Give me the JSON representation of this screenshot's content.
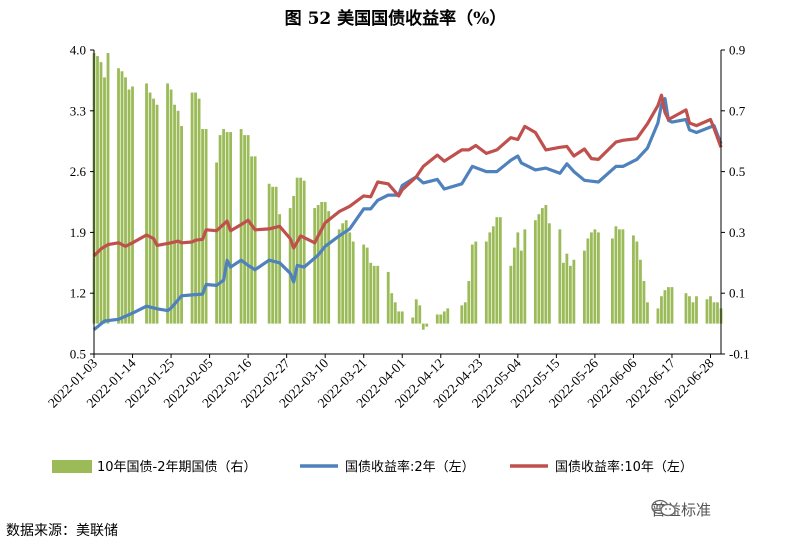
{
  "title": "图 52  美国国债收益率（%）",
  "source": "数据来源：美联储",
  "brand": {
    "name": "普益标准",
    "icon": "wechat-icon"
  },
  "colors": {
    "bar": "#9BBB59",
    "line2y": "#4F81BD",
    "line10y": "#C0504D"
  },
  "chart_data": {
    "type": "bar+line",
    "title": "",
    "left_axis": {
      "min": 0.5,
      "max": 4.0,
      "ticks": [
        "0.5",
        "1.2",
        "1.9",
        "2.6",
        "3.3",
        "4.0"
      ],
      "tick_values": [
        0.5,
        1.2,
        1.9,
        2.6,
        3.3,
        4.0
      ]
    },
    "right_axis": {
      "min": -0.1,
      "max": 0.9,
      "ticks": [
        "-0.1",
        "0.1",
        "0.3",
        "0.5",
        "0.7",
        "0.9"
      ],
      "tick_values": [
        -0.1,
        0.1,
        0.3,
        0.5,
        0.7,
        0.9
      ]
    },
    "x_tick_labels": [
      "2022-01-03",
      "2022-01-14",
      "2022-01-25",
      "2022-02-05",
      "2022-02-16",
      "2022-02-27",
      "2022-03-10",
      "2022-03-21",
      "2022-04-01",
      "2022-04-12",
      "2022-04-23",
      "2022-05-04",
      "2022-05-15",
      "2022-05-26",
      "2022-06-06",
      "2022-06-17",
      "2022-06-28"
    ],
    "x_range": [
      "2022-01-03",
      "2022-07-01"
    ],
    "legend_position": "bottom",
    "series": [
      {
        "name": "10年国债-2年期国债（右）",
        "type": "bar",
        "axis": "right",
        "points": [
          [
            "2022-01-03",
            0.89
          ],
          [
            "2022-01-04",
            0.88
          ],
          [
            "2022-01-05",
            0.86
          ],
          [
            "2022-01-06",
            0.81
          ],
          [
            "2022-01-07",
            0.89
          ],
          [
            "2022-01-10",
            0.84
          ],
          [
            "2022-01-11",
            0.83
          ],
          [
            "2022-01-12",
            0.81
          ],
          [
            "2022-01-13",
            0.77
          ],
          [
            "2022-01-14",
            0.78
          ],
          [
            "2022-01-18",
            0.79
          ],
          [
            "2022-01-19",
            0.76
          ],
          [
            "2022-01-20",
            0.74
          ],
          [
            "2022-01-21",
            0.72
          ],
          [
            "2022-01-24",
            0.79
          ],
          [
            "2022-01-25",
            0.77
          ],
          [
            "2022-01-26",
            0.72
          ],
          [
            "2022-01-27",
            0.7
          ],
          [
            "2022-01-28",
            0.65
          ],
          [
            "2022-01-31",
            0.76
          ],
          [
            "2022-02-01",
            0.76
          ],
          [
            "2022-02-02",
            0.74
          ],
          [
            "2022-02-03",
            0.64
          ],
          [
            "2022-02-04",
            0.64
          ],
          [
            "2022-02-07",
            0.53
          ],
          [
            "2022-02-08",
            0.62
          ],
          [
            "2022-02-09",
            0.64
          ],
          [
            "2022-02-10",
            0.63
          ],
          [
            "2022-02-11",
            0.63
          ],
          [
            "2022-02-14",
            0.64
          ],
          [
            "2022-02-15",
            0.62
          ],
          [
            "2022-02-16",
            0.62
          ],
          [
            "2022-02-17",
            0.55
          ],
          [
            "2022-02-18",
            0.55
          ],
          [
            "2022-02-22",
            0.46
          ],
          [
            "2022-02-23",
            0.45
          ],
          [
            "2022-02-24",
            0.45
          ],
          [
            "2022-02-25",
            0.36
          ],
          [
            "2022-02-28",
            0.38
          ],
          [
            "2022-03-01",
            0.42
          ],
          [
            "2022-03-02",
            0.48
          ],
          [
            "2022-03-03",
            0.48
          ],
          [
            "2022-03-04",
            0.47
          ],
          [
            "2022-03-07",
            0.38
          ],
          [
            "2022-03-08",
            0.39
          ],
          [
            "2022-03-09",
            0.4
          ],
          [
            "2022-03-10",
            0.4
          ],
          [
            "2022-03-11",
            0.37
          ],
          [
            "2022-03-14",
            0.31
          ],
          [
            "2022-03-15",
            0.33
          ],
          [
            "2022-03-16",
            0.34
          ],
          [
            "2022-03-17",
            0.3
          ],
          [
            "2022-03-18",
            0.27
          ],
          [
            "2022-03-21",
            0.26
          ],
          [
            "2022-03-22",
            0.25
          ],
          [
            "2022-03-23",
            0.2
          ],
          [
            "2022-03-24",
            0.19
          ],
          [
            "2022-03-25",
            0.19
          ],
          [
            "2022-03-28",
            0.17
          ],
          [
            "2022-03-29",
            0.1
          ],
          [
            "2022-03-30",
            0.07
          ],
          [
            "2022-03-31",
            0.04
          ],
          [
            "2022-04-01",
            0.04
          ],
          [
            "2022-04-04",
            0.02
          ],
          [
            "2022-04-05",
            0.08
          ],
          [
            "2022-04-06",
            0.06
          ],
          [
            "2022-04-07",
            -0.02
          ],
          [
            "2022-04-08",
            -0.01
          ],
          [
            "2022-04-11",
            0.03
          ],
          [
            "2022-04-12",
            0.03
          ],
          [
            "2022-04-13",
            0.04
          ],
          [
            "2022-04-14",
            0.05
          ],
          [
            "2022-04-18",
            0.06
          ],
          [
            "2022-04-19",
            0.07
          ],
          [
            "2022-04-20",
            0.14
          ],
          [
            "2022-04-21",
            0.26
          ],
          [
            "2022-04-22",
            0.27
          ],
          [
            "2022-04-25",
            0.27
          ],
          [
            "2022-04-26",
            0.3
          ],
          [
            "2022-04-27",
            0.32
          ],
          [
            "2022-04-28",
            0.35
          ],
          [
            "2022-04-29",
            0.35
          ],
          [
            "2022-05-02",
            0.19
          ],
          [
            "2022-05-03",
            0.25
          ],
          [
            "2022-05-04",
            0.3
          ],
          [
            "2022-05-05",
            0.24
          ],
          [
            "2022-05-06",
            0.31
          ],
          [
            "2022-05-09",
            0.34
          ],
          [
            "2022-05-10",
            0.36
          ],
          [
            "2022-05-11",
            0.38
          ],
          [
            "2022-05-12",
            0.39
          ],
          [
            "2022-05-13",
            0.33
          ],
          [
            "2022-05-16",
            0.31
          ],
          [
            "2022-05-17",
            0.2
          ],
          [
            "2022-05-18",
            0.23
          ],
          [
            "2022-05-19",
            0.19
          ],
          [
            "2022-05-20",
            0.21
          ],
          [
            "2022-05-23",
            0.24
          ],
          [
            "2022-05-24",
            0.28
          ],
          [
            "2022-05-25",
            0.3
          ],
          [
            "2022-05-26",
            0.31
          ],
          [
            "2022-05-27",
            0.3
          ],
          [
            "2022-05-31",
            0.28
          ],
          [
            "2022-06-01",
            0.32
          ],
          [
            "2022-06-02",
            0.31
          ],
          [
            "2022-06-03",
            0.31
          ],
          [
            "2022-06-06",
            0.29
          ],
          [
            "2022-06-07",
            0.27
          ],
          [
            "2022-06-08",
            0.21
          ],
          [
            "2022-06-09",
            0.14
          ],
          [
            "2022-06-10",
            0.07
          ],
          [
            "2022-06-13",
            0.05
          ],
          [
            "2022-06-14",
            0.09
          ],
          [
            "2022-06-15",
            0.11
          ],
          [
            "2022-06-16",
            0.12
          ],
          [
            "2022-06-17",
            0.12
          ],
          [
            "2022-06-21",
            0.1
          ],
          [
            "2022-06-22",
            0.09
          ],
          [
            "2022-06-23",
            0.07
          ],
          [
            "2022-06-24",
            0.09
          ],
          [
            "2022-06-27",
            0.08
          ],
          [
            "2022-06-28",
            0.09
          ],
          [
            "2022-06-29",
            0.07
          ],
          [
            "2022-06-30",
            0.07
          ],
          [
            "2022-07-01",
            0.05
          ]
        ]
      },
      {
        "name": "国债收益率:2年（左）",
        "type": "line",
        "axis": "left",
        "points": [
          [
            "2022-01-03",
            0.78
          ],
          [
            "2022-01-06",
            0.88
          ],
          [
            "2022-01-10",
            0.9
          ],
          [
            "2022-01-14",
            0.97
          ],
          [
            "2022-01-18",
            1.05
          ],
          [
            "2022-01-21",
            1.02
          ],
          [
            "2022-01-24",
            1.0
          ],
          [
            "2022-01-25",
            1.03
          ],
          [
            "2022-01-28",
            1.17
          ],
          [
            "2022-01-31",
            1.18
          ],
          [
            "2022-02-03",
            1.19
          ],
          [
            "2022-02-04",
            1.3
          ],
          [
            "2022-02-07",
            1.29
          ],
          [
            "2022-02-09",
            1.35
          ],
          [
            "2022-02-10",
            1.58
          ],
          [
            "2022-02-11",
            1.5
          ],
          [
            "2022-02-14",
            1.58
          ],
          [
            "2022-02-16",
            1.52
          ],
          [
            "2022-02-18",
            1.47
          ],
          [
            "2022-02-22",
            1.58
          ],
          [
            "2022-02-25",
            1.55
          ],
          [
            "2022-02-28",
            1.43
          ],
          [
            "2022-03-01",
            1.33
          ],
          [
            "2022-03-02",
            1.52
          ],
          [
            "2022-03-04",
            1.5
          ],
          [
            "2022-03-08",
            1.64
          ],
          [
            "2022-03-10",
            1.74
          ],
          [
            "2022-03-14",
            1.86
          ],
          [
            "2022-03-17",
            1.94
          ],
          [
            "2022-03-21",
            2.17
          ],
          [
            "2022-03-23",
            2.17
          ],
          [
            "2022-03-25",
            2.27
          ],
          [
            "2022-03-28",
            2.33
          ],
          [
            "2022-03-31",
            2.33
          ],
          [
            "2022-04-01",
            2.44
          ],
          [
            "2022-04-05",
            2.54
          ],
          [
            "2022-04-07",
            2.47
          ],
          [
            "2022-04-11",
            2.51
          ],
          [
            "2022-04-13",
            2.4
          ],
          [
            "2022-04-18",
            2.46
          ],
          [
            "2022-04-21",
            2.66
          ],
          [
            "2022-04-25",
            2.6
          ],
          [
            "2022-04-28",
            2.6
          ],
          [
            "2022-05-02",
            2.73
          ],
          [
            "2022-05-04",
            2.78
          ],
          [
            "2022-05-05",
            2.7
          ],
          [
            "2022-05-09",
            2.62
          ],
          [
            "2022-05-12",
            2.64
          ],
          [
            "2022-05-16",
            2.58
          ],
          [
            "2022-05-18",
            2.69
          ],
          [
            "2022-05-20",
            2.6
          ],
          [
            "2022-05-23",
            2.5
          ],
          [
            "2022-05-25",
            2.49
          ],
          [
            "2022-05-27",
            2.48
          ],
          [
            "2022-06-01",
            2.66
          ],
          [
            "2022-06-03",
            2.66
          ],
          [
            "2022-06-07",
            2.74
          ],
          [
            "2022-06-10",
            2.87
          ],
          [
            "2022-06-13",
            3.16
          ],
          [
            "2022-06-14",
            3.37
          ],
          [
            "2022-06-15",
            3.44
          ],
          [
            "2022-06-16",
            3.19
          ],
          [
            "2022-06-17",
            3.17
          ],
          [
            "2022-06-21",
            3.2
          ],
          [
            "2022-06-22",
            3.08
          ],
          [
            "2022-06-24",
            3.05
          ],
          [
            "2022-06-29",
            3.13
          ],
          [
            "2022-07-01",
            2.92
          ]
        ]
      },
      {
        "name": "国债收益率:10年（左）",
        "type": "line",
        "axis": "left",
        "points": [
          [
            "2022-01-03",
            1.63
          ],
          [
            "2022-01-05",
            1.71
          ],
          [
            "2022-01-07",
            1.76
          ],
          [
            "2022-01-10",
            1.78
          ],
          [
            "2022-01-12",
            1.74
          ],
          [
            "2022-01-14",
            1.78
          ],
          [
            "2022-01-18",
            1.87
          ],
          [
            "2022-01-20",
            1.83
          ],
          [
            "2022-01-21",
            1.75
          ],
          [
            "2022-01-25",
            1.78
          ],
          [
            "2022-01-27",
            1.8
          ],
          [
            "2022-01-28",
            1.78
          ],
          [
            "2022-01-31",
            1.79
          ],
          [
            "2022-02-01",
            1.81
          ],
          [
            "2022-02-03",
            1.82
          ],
          [
            "2022-02-04",
            1.93
          ],
          [
            "2022-02-07",
            1.92
          ],
          [
            "2022-02-10",
            2.03
          ],
          [
            "2022-02-11",
            1.92
          ],
          [
            "2022-02-14",
            1.99
          ],
          [
            "2022-02-16",
            2.04
          ],
          [
            "2022-02-18",
            1.93
          ],
          [
            "2022-02-22",
            1.94
          ],
          [
            "2022-02-25",
            1.97
          ],
          [
            "2022-02-28",
            1.83
          ],
          [
            "2022-03-01",
            1.72
          ],
          [
            "2022-03-03",
            1.86
          ],
          [
            "2022-03-07",
            1.78
          ],
          [
            "2022-03-08",
            1.86
          ],
          [
            "2022-03-10",
            2.01
          ],
          [
            "2022-03-14",
            2.14
          ],
          [
            "2022-03-17",
            2.2
          ],
          [
            "2022-03-21",
            2.32
          ],
          [
            "2022-03-23",
            2.31
          ],
          [
            "2022-03-25",
            2.48
          ],
          [
            "2022-03-28",
            2.46
          ],
          [
            "2022-03-31",
            2.32
          ],
          [
            "2022-04-01",
            2.39
          ],
          [
            "2022-04-05",
            2.54
          ],
          [
            "2022-04-07",
            2.66
          ],
          [
            "2022-04-11",
            2.79
          ],
          [
            "2022-04-13",
            2.72
          ],
          [
            "2022-04-18",
            2.85
          ],
          [
            "2022-04-20",
            2.85
          ],
          [
            "2022-04-22",
            2.9
          ],
          [
            "2022-04-25",
            2.81
          ],
          [
            "2022-04-28",
            2.85
          ],
          [
            "2022-05-02",
            2.99
          ],
          [
            "2022-05-04",
            2.97
          ],
          [
            "2022-05-06",
            3.12
          ],
          [
            "2022-05-09",
            3.05
          ],
          [
            "2022-05-12",
            2.85
          ],
          [
            "2022-05-16",
            2.88
          ],
          [
            "2022-05-18",
            2.89
          ],
          [
            "2022-05-20",
            2.78
          ],
          [
            "2022-05-23",
            2.86
          ],
          [
            "2022-05-25",
            2.75
          ],
          [
            "2022-05-27",
            2.74
          ],
          [
            "2022-06-01",
            2.94
          ],
          [
            "2022-06-03",
            2.96
          ],
          [
            "2022-06-07",
            2.98
          ],
          [
            "2022-06-10",
            3.15
          ],
          [
            "2022-06-13",
            3.36
          ],
          [
            "2022-06-14",
            3.48
          ],
          [
            "2022-06-15",
            3.28
          ],
          [
            "2022-06-16",
            3.2
          ],
          [
            "2022-06-21",
            3.31
          ],
          [
            "2022-06-22",
            3.16
          ],
          [
            "2022-06-24",
            3.13
          ],
          [
            "2022-06-28",
            3.2
          ],
          [
            "2022-06-29",
            3.1
          ],
          [
            "2022-07-01",
            2.88
          ]
        ]
      }
    ]
  }
}
